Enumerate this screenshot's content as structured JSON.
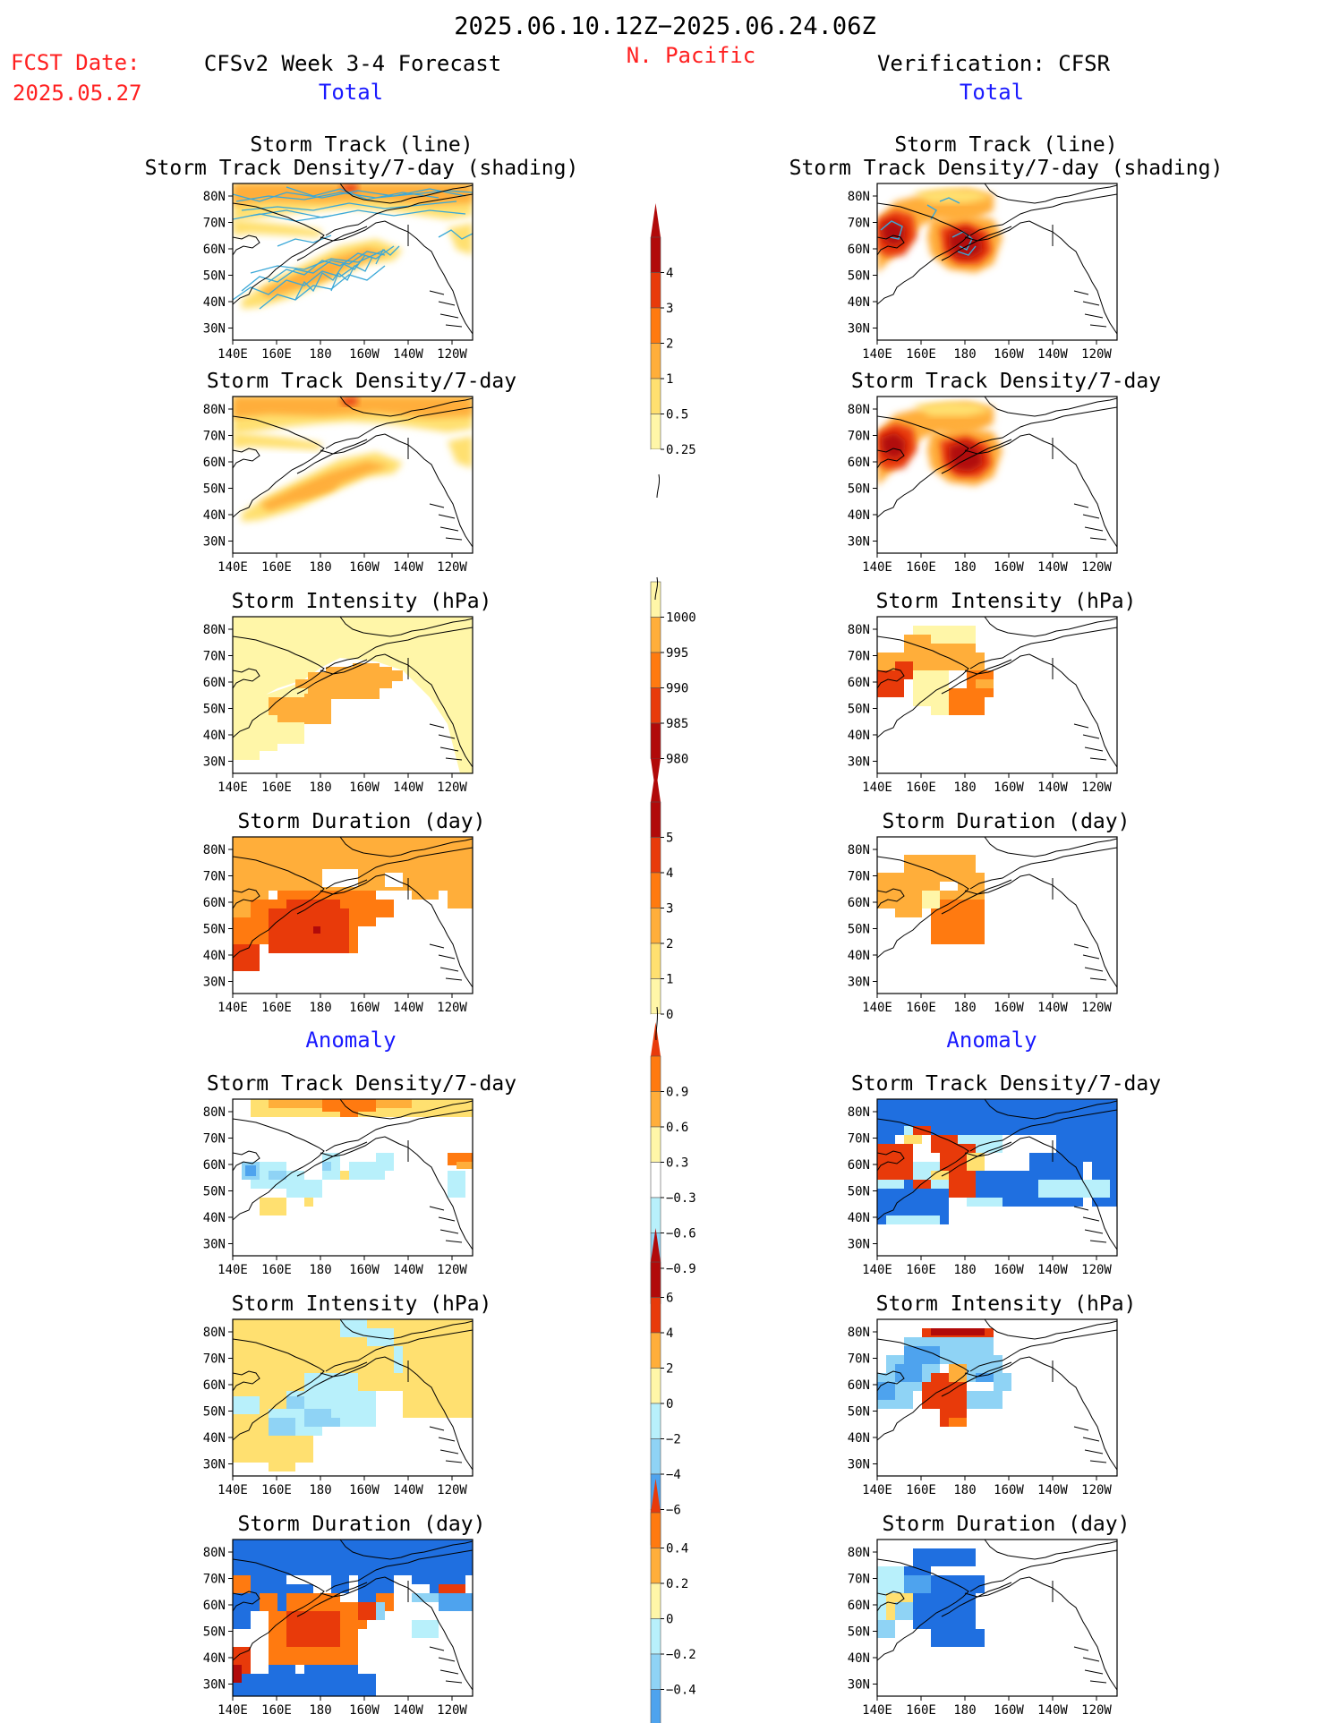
{
  "header": {
    "date_range": "2025.06.10.12Z−2025.06.24.06Z",
    "fcst_label": "FCST Date:",
    "fcst_date": "2025.05.27",
    "model": "CFSv2 Week 3-4 Forecast",
    "region": "N. Pacific",
    "verification": "Verification: CFSR"
  },
  "sections": {
    "total": "Total",
    "anomaly": "Anomaly"
  },
  "colors": {
    "red_text": "#ff2020",
    "blue_text": "#1a1aff",
    "track_line": "#3aa8d8",
    "warm": [
      "#fff6a8",
      "#ffe070",
      "#ffae3a",
      "#ff7a10",
      "#e83a0a",
      "#b10a0a"
    ],
    "cool": [
      "#b8f0fb",
      "#8fd3f5",
      "#4ea3ee",
      "#1f6fe0"
    ]
  },
  "axes": {
    "x_ticks": [
      "140E",
      "160E",
      "180",
      "160W",
      "140W",
      "120W"
    ],
    "y_ticks": [
      "80N",
      "70N",
      "60N",
      "50N",
      "40N",
      "30N"
    ]
  },
  "panels": {
    "f_track": "Storm Track (line)\nStorm Track Density/7-day (shading)",
    "f_density": "Storm Track Density/7-day",
    "f_intensity": "Storm Intensity (hPa)",
    "f_duration": "Storm Duration (day)",
    "f_density_anom": "Storm Track Density/7-day",
    "f_intensity_anom": "Storm Intensity (hPa)",
    "f_duration_anom": "Storm Duration (day)",
    "v_track": "Storm Track (line)\nStorm Track Density/7-day (shading)",
    "v_density": "Storm Track Density/7-day",
    "v_intensity": "Storm Intensity (hPa)",
    "v_duration": "Storm Duration (day)",
    "v_density_anom": "Storm Track Density/7-day",
    "v_intensity_anom": "Storm Intensity (hPa)",
    "v_duration_anom": "Storm Duration (day)"
  },
  "chart_data": [
    {
      "type": "heatmap",
      "name": "Storm Track Density/7-day (shading) colorbar",
      "levels": [
        "0.25",
        "0.5",
        "1",
        "2",
        "3",
        "4"
      ]
    },
    {
      "type": "heatmap",
      "name": "Storm Intensity (hPa) colorbar",
      "levels": [
        "1000",
        "995",
        "990",
        "985",
        "980"
      ]
    },
    {
      "type": "heatmap",
      "name": "Storm Duration (day) colorbar",
      "levels": [
        "5",
        "4",
        "3",
        "2",
        "1",
        "0"
      ]
    },
    {
      "type": "heatmap",
      "name": "Storm Track Density/7-day anomaly colorbar",
      "levels": [
        "0.9",
        "0.6",
        "0.3",
        "−0.3",
        "−0.6",
        "−0.9"
      ]
    },
    {
      "type": "heatmap",
      "name": "Storm Intensity (hPa) anomaly colorbar",
      "levels": [
        "6",
        "4",
        "2",
        "0",
        "−2",
        "−4",
        "−6"
      ]
    },
    {
      "type": "heatmap",
      "name": "Storm Duration (day) anomaly colorbar",
      "levels": [
        "0.4",
        "0.2",
        "0",
        "−0.2",
        "−0.4"
      ]
    }
  ]
}
